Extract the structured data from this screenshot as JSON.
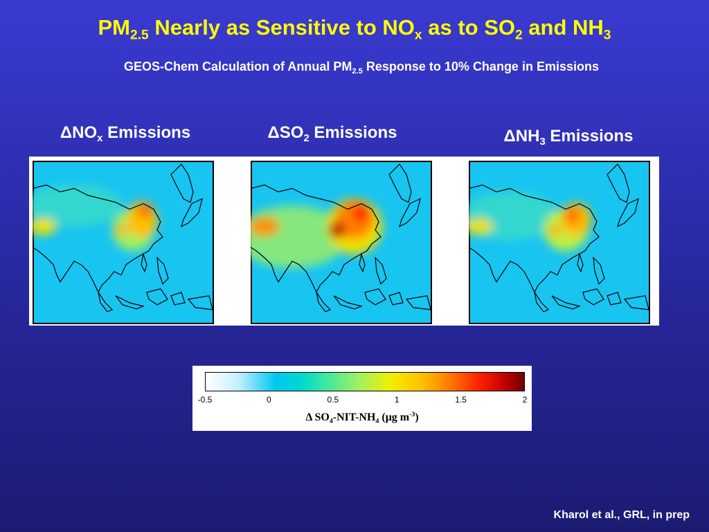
{
  "title": [
    "PM",
    "2.5",
    " Nearly as Sensitive to NO",
    "x",
    " as to SO",
    "2",
    " and NH",
    "3"
  ],
  "subtitle": [
    "GEOS-Chem Calculation of Annual PM",
    "2.5",
    " Response to 10% Change in Emissions"
  ],
  "panels": [
    {
      "label": [
        "ΔNO",
        "x",
        " Emissions"
      ]
    },
    {
      "label": [
        "ΔSO",
        "2",
        " Emissions"
      ]
    },
    {
      "label": [
        "ΔNH",
        "3",
        " Emissions"
      ]
    }
  ],
  "colorbar": {
    "lim": [
      -0.5,
      2
    ],
    "ticks": [
      -0.5,
      0,
      0.5,
      1,
      1.5,
      2
    ],
    "label": [
      "Δ SO",
      "4",
      "-NIT-NH",
      "4",
      " (μg m",
      "-3",
      ")"
    ]
  },
  "citation": "Kharol et al., GRL, in prep"
}
